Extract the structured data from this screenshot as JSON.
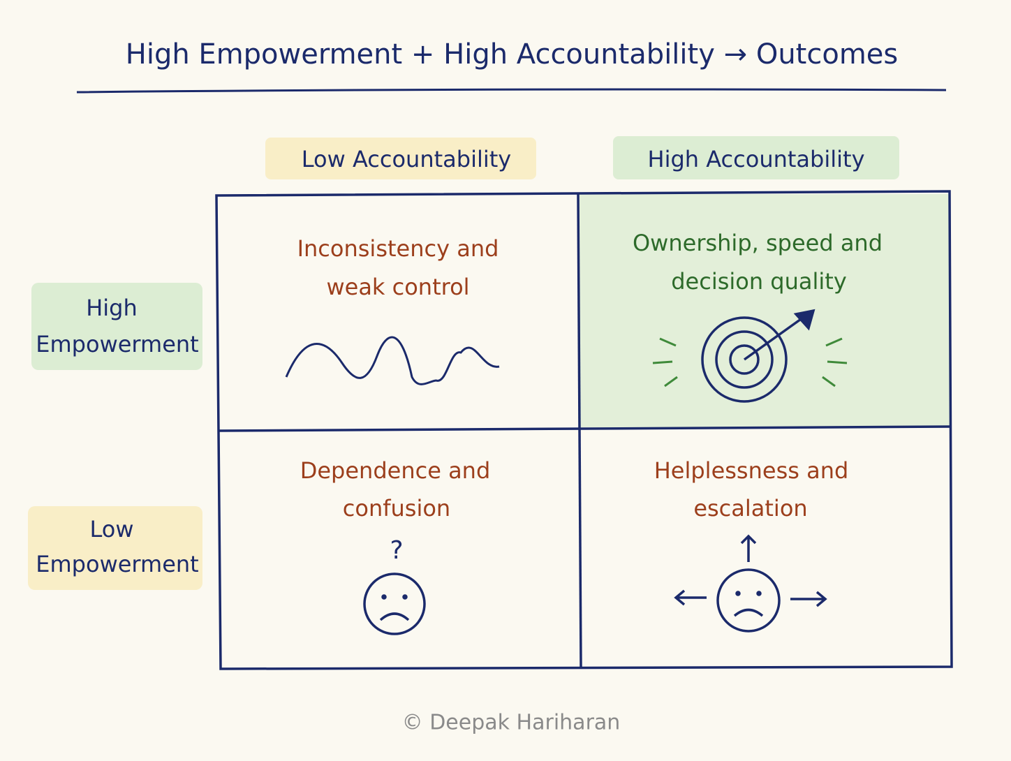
{
  "title": "High Empowerment + High Accountability → Outcomes",
  "columns": [
    "Low Accountability",
    "High Accountability"
  ],
  "rows": [
    {
      "lines": [
        "High",
        "Empowerment"
      ]
    },
    {
      "lines": [
        "Low",
        "Empowerment"
      ]
    }
  ],
  "cells": [
    {
      "lines": [
        "Inconsistency and",
        "weak control"
      ]
    },
    {
      "lines": [
        "Ownership, speed and",
        "decision quality"
      ]
    },
    {
      "lines": [
        "Dependence and",
        "confusion"
      ]
    },
    {
      "lines": [
        "Helplessness and",
        "escalation"
      ]
    }
  ],
  "icon_text": "?",
  "footer": "© Deepak Hariharan"
}
